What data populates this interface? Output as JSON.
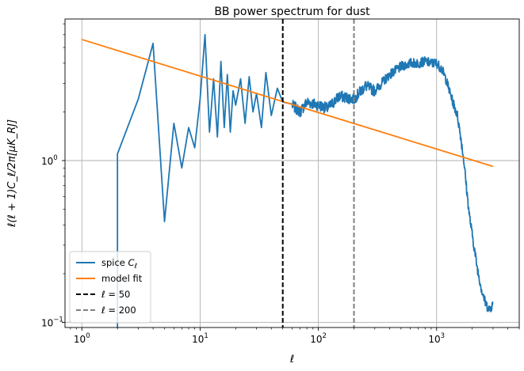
{
  "chart_data": {
    "type": "line",
    "title": "BB power spectrum for dust",
    "xlabel": "ℓ",
    "ylabel": "ℓ(ℓ + 1)C_ℓ/2π[μK_RJ]",
    "xscale": "log",
    "yscale": "log",
    "xlim": [
      0.72,
      5000
    ],
    "ylim": [
      0.093,
      7.5
    ],
    "grid": true,
    "legend_position": "lower-left",
    "x_ticks": [
      {
        "value": 1,
        "base": "10",
        "exp": "0"
      },
      {
        "value": 10,
        "base": "10",
        "exp": "1"
      },
      {
        "value": 100,
        "base": "10",
        "exp": "2"
      },
      {
        "value": 1000,
        "base": "10",
        "exp": "3"
      }
    ],
    "y_ticks": [
      {
        "value": 0.1,
        "base": "10",
        "exp": "−1"
      },
      {
        "value": 1,
        "base": "10",
        "exp": "0"
      }
    ],
    "series": [
      {
        "name": "spice C_ℓ",
        "legend_main": "spice ",
        "legend_sym": "C",
        "legend_sub": "ℓ",
        "color": "#1f77b4",
        "style": "solid",
        "noisy_tail": true,
        "x": [
          2,
          2,
          3,
          4,
          5,
          6,
          7,
          8,
          9,
          10,
          11,
          12,
          13,
          14,
          15,
          16,
          17,
          18,
          19,
          20,
          22,
          24,
          26,
          28,
          30,
          33,
          36,
          40,
          45,
          50,
          60,
          70,
          80,
          100,
          120,
          150,
          200,
          250,
          300,
          400,
          500,
          600,
          700,
          800,
          900,
          1000,
          1100,
          1200,
          1300,
          1400,
          1500,
          1600,
          1700,
          1800,
          1900,
          2000,
          2200,
          2400,
          2600,
          2800,
          3000
        ],
        "y": [
          0.09,
          1.1,
          2.4,
          5.3,
          0.42,
          1.7,
          0.9,
          1.6,
          1.2,
          2.4,
          6.0,
          1.5,
          3.2,
          1.4,
          4.1,
          1.6,
          3.4,
          1.5,
          2.7,
          2.2,
          3.2,
          1.7,
          3.3,
          2.0,
          2.6,
          1.6,
          3.5,
          1.9,
          2.8,
          2.3,
          2.2,
          2.0,
          2.3,
          2.2,
          2.1,
          2.5,
          2.4,
          2.9,
          2.7,
          3.4,
          3.8,
          4.0,
          4.0,
          4.1,
          4.0,
          4.0,
          3.7,
          3.2,
          2.6,
          2.2,
          1.9,
          1.4,
          1.0,
          0.65,
          0.45,
          0.35,
          0.22,
          0.16,
          0.13,
          0.12,
          0.13
        ]
      },
      {
        "name": "model fit",
        "legend_main": "model fit",
        "color": "#ff7f0e",
        "style": "solid",
        "x": [
          1,
          3000
        ],
        "y": [
          5.6,
          0.92
        ]
      },
      {
        "name": "ℓ = 50",
        "legend_main": "ℓ = 50",
        "color": "#000000",
        "style": "dashed",
        "vline": 50
      },
      {
        "name": "ℓ = 200",
        "legend_main": "ℓ = 200",
        "color": "#808080",
        "style": "dashed",
        "vline": 200
      }
    ]
  }
}
